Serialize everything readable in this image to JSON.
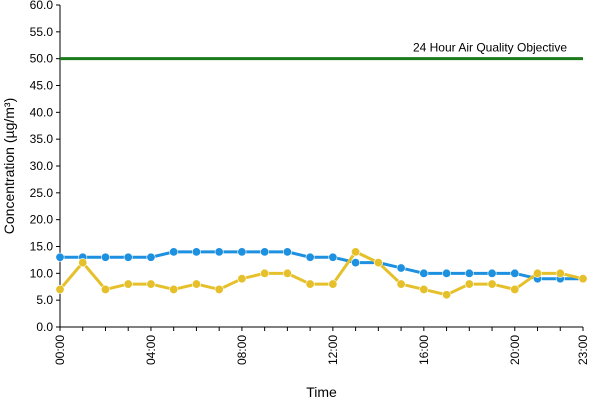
{
  "chart_data": {
    "type": "line",
    "title": "",
    "xlabel": "Time",
    "ylabel": "Concentration (µg/m³)",
    "ylim": [
      0,
      60
    ],
    "yticks": [
      "0.0",
      "5.0",
      "10.0",
      "15.0",
      "20.0",
      "25.0",
      "30.0",
      "35.0",
      "40.0",
      "45.0",
      "50.0",
      "55.0",
      "60.0"
    ],
    "x": [
      "00:00",
      "01:00",
      "02:00",
      "03:00",
      "04:00",
      "05:00",
      "06:00",
      "07:00",
      "08:00",
      "09:00",
      "10:00",
      "11:00",
      "12:00",
      "13:00",
      "14:00",
      "15:00",
      "16:00",
      "17:00",
      "18:00",
      "19:00",
      "20:00",
      "21:00",
      "22:00",
      "23:00"
    ],
    "xticks": [
      "00:00",
      "04:00",
      "08:00",
      "12:00",
      "16:00",
      "20:00",
      "23:00"
    ],
    "grid": false,
    "legend": "none",
    "series": [
      {
        "color": "#1E90E0",
        "values": [
          13,
          13,
          13,
          13,
          13,
          14,
          14,
          14,
          14,
          14,
          14,
          13,
          13,
          12,
          12,
          11,
          10,
          10,
          10,
          10,
          10,
          9,
          9,
          9
        ]
      },
      {
        "color": "#E6C02A",
        "values": [
          7,
          12,
          7,
          8,
          8,
          7,
          8,
          7,
          9,
          10,
          10,
          8,
          8,
          14,
          12,
          8,
          7,
          6,
          8,
          8,
          7,
          10,
          10,
          9
        ]
      }
    ],
    "reference_line": {
      "value": 50,
      "label": "24 Hour Air Quality Objective",
      "color": "#1B7A1B"
    }
  }
}
